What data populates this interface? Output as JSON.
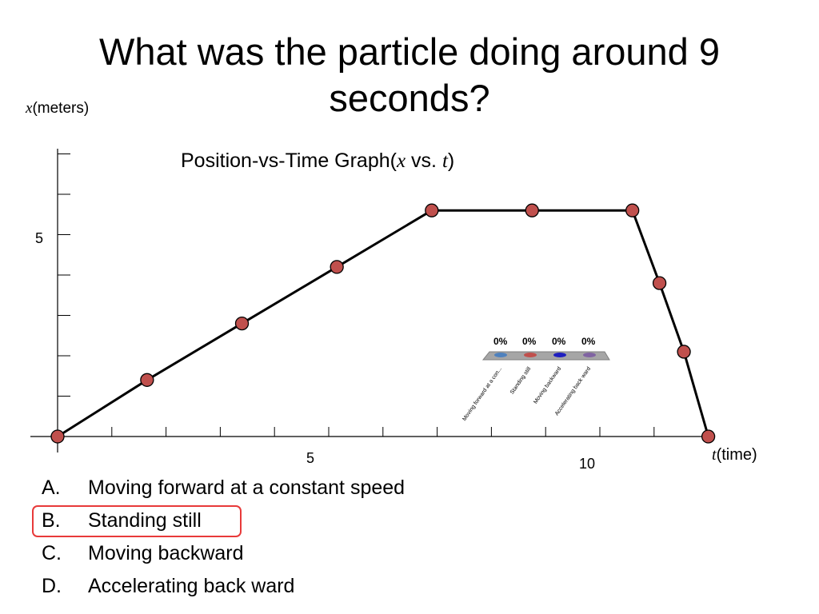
{
  "slide": {
    "title": "What was the particle doing around 9 seconds?"
  },
  "chart_data": {
    "type": "line",
    "title_prefix": "Position-vs-Time Graph(",
    "title_x": "x",
    "title_vs": " vs.  ",
    "title_t": "t",
    "title_suffix": ")",
    "ylabel_var": "x",
    "ylabel_unit": "(meters)",
    "xlabel_var": "t",
    "xlabel_unit": "(time)",
    "x_tick_labels": [
      "5",
      "10"
    ],
    "y_tick_labels": [
      "5"
    ],
    "xlim": [
      0,
      12
    ],
    "ylim": [
      0,
      7
    ],
    "grid": false,
    "series": [
      {
        "color": "#000000",
        "marker_color": "#c0504d",
        "x": [
          0,
          1.65,
          3.4,
          5.15,
          6.9,
          8.75,
          10.6,
          11.1,
          11.55,
          12.0
        ],
        "y": [
          0,
          1.4,
          2.8,
          4.2,
          5.6,
          5.6,
          5.6,
          3.8,
          2.1,
          0
        ]
      }
    ]
  },
  "poll": {
    "percentages": [
      "0%",
      "0%",
      "0%",
      "0%"
    ],
    "categories": [
      "Moving forward at a con...",
      "Standing still",
      "Moving backward",
      "Accelerating back ward"
    ],
    "colors": [
      "#4f81bd",
      "#c0504d",
      "#1f1fbf",
      "#8064a2"
    ]
  },
  "choices": [
    {
      "letter": "A.",
      "text": "Moving forward at a constant speed"
    },
    {
      "letter": "B.",
      "text": "Standing still"
    },
    {
      "letter": "C.",
      "text": "Moving backward"
    },
    {
      "letter": "D.",
      "text": "Accelerating back ward"
    }
  ],
  "highlight_color": "#e83a3a"
}
